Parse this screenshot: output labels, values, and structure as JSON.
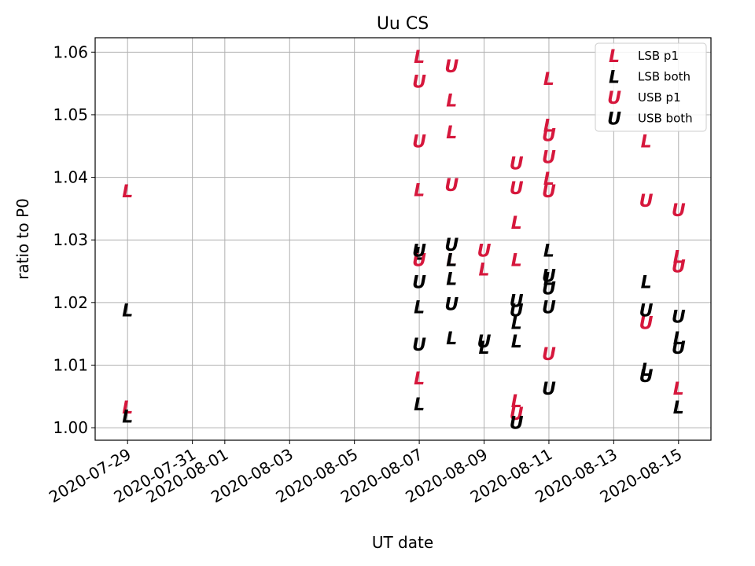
{
  "chart_data": {
    "type": "scatter",
    "title": "Uu CS",
    "xlabel": "UT date",
    "ylabel": "ratio to P0",
    "xlim": [
      "2020-07-28",
      "2020-08-16"
    ],
    "ylim": [
      0.998,
      1.0623
    ],
    "x_ticks": [
      "2020-07-29",
      "2020-07-31",
      "2020-08-01",
      "2020-08-03",
      "2020-08-05",
      "2020-08-07",
      "2020-08-09",
      "2020-08-11",
      "2020-08-13",
      "2020-08-15"
    ],
    "x_tick_labels": [
      "2020-07-29",
      "2020-07-31",
      "2020-08-01",
      "2020-08-03",
      "2020-08-05",
      "2020-08-07",
      "2020-08-09",
      "2020-08-11",
      "2020-08-13",
      "2020-08-15"
    ],
    "y_ticks": [
      1.0,
      1.01,
      1.02,
      1.03,
      1.04,
      1.05,
      1.06
    ],
    "y_tick_labels": [
      "1.00",
      "1.01",
      "1.02",
      "1.03",
      "1.04",
      "1.05",
      "1.06"
    ],
    "grid": true,
    "legend_position": "top-right",
    "series": [
      {
        "name": "LSB p1",
        "marker": "L",
        "color": "#d6173c",
        "points": [
          {
            "x": "2020-07-29",
            "y": 1.0378
          },
          {
            "x": "2020-07-29",
            "y": 1.0033
          },
          {
            "x": "2020-08-07",
            "y": 1.0593
          },
          {
            "x": "2020-08-07",
            "y": 1.038
          },
          {
            "x": "2020-08-07",
            "y": 1.0079
          },
          {
            "x": "2020-08-08",
            "y": 1.0523
          },
          {
            "x": "2020-08-08",
            "y": 1.0472
          },
          {
            "x": "2020-08-08",
            "y": 1.0268
          },
          {
            "x": "2020-08-09",
            "y": 1.0253
          },
          {
            "x": "2020-08-10",
            "y": 1.0328
          },
          {
            "x": "2020-08-10",
            "y": 1.0268
          },
          {
            "x": "2020-08-10",
            "y": 1.0043
          },
          {
            "x": "2020-08-11",
            "y": 1.0558
          },
          {
            "x": "2020-08-11",
            "y": 1.0483
          },
          {
            "x": "2020-08-11",
            "y": 1.0398
          },
          {
            "x": "2020-08-14",
            "y": 1.0458
          },
          {
            "x": "2020-08-15",
            "y": 1.0273
          },
          {
            "x": "2020-08-15",
            "y": 1.0063
          }
        ]
      },
      {
        "name": "LSB both",
        "marker": "L",
        "color": "#000000",
        "points": [
          {
            "x": "2020-07-29",
            "y": 1.0188
          },
          {
            "x": "2020-07-29",
            "y": 1.0018
          },
          {
            "x": "2020-08-07",
            "y": 1.0278
          },
          {
            "x": "2020-08-07",
            "y": 1.0193
          },
          {
            "x": "2020-08-07",
            "y": 1.0038
          },
          {
            "x": "2020-08-08",
            "y": 1.0268
          },
          {
            "x": "2020-08-08",
            "y": 1.0238
          },
          {
            "x": "2020-08-08",
            "y": 1.0143
          },
          {
            "x": "2020-08-09",
            "y": 1.0128
          },
          {
            "x": "2020-08-10",
            "y": 1.0168
          },
          {
            "x": "2020-08-10",
            "y": 1.0138
          },
          {
            "x": "2020-08-11",
            "y": 1.0283
          },
          {
            "x": "2020-08-11",
            "y": 1.0238
          },
          {
            "x": "2020-08-14",
            "y": 1.0233
          },
          {
            "x": "2020-08-14",
            "y": 1.0093
          },
          {
            "x": "2020-08-15",
            "y": 1.0143
          },
          {
            "x": "2020-08-15",
            "y": 1.0033
          }
        ]
      },
      {
        "name": "USB p1",
        "marker": "U",
        "color": "#d6173c",
        "points": [
          {
            "x": "2020-08-07",
            "y": 1.0553
          },
          {
            "x": "2020-08-07",
            "y": 1.0458
          },
          {
            "x": "2020-08-07",
            "y": 1.0268
          },
          {
            "x": "2020-08-08",
            "y": 1.0578
          },
          {
            "x": "2020-08-08",
            "y": 1.0388
          },
          {
            "x": "2020-08-09",
            "y": 1.0283
          },
          {
            "x": "2020-08-10",
            "y": 1.0423
          },
          {
            "x": "2020-08-10",
            "y": 1.0383
          },
          {
            "x": "2020-08-10",
            "y": 1.0023
          },
          {
            "x": "2020-08-11",
            "y": 1.0468
          },
          {
            "x": "2020-08-11",
            "y": 1.0433
          },
          {
            "x": "2020-08-11",
            "y": 1.0378
          },
          {
            "x": "2020-08-11",
            "y": 1.0118
          },
          {
            "x": "2020-08-14",
            "y": 1.0363
          },
          {
            "x": "2020-08-14",
            "y": 1.0168
          },
          {
            "x": "2020-08-15",
            "y": 1.0348
          },
          {
            "x": "2020-08-15",
            "y": 1.0258
          }
        ]
      },
      {
        "name": "USB both",
        "marker": "U",
        "color": "#000000",
        "points": [
          {
            "x": "2020-08-07",
            "y": 1.0283
          },
          {
            "x": "2020-08-07",
            "y": 1.0233
          },
          {
            "x": "2020-08-07",
            "y": 1.0133
          },
          {
            "x": "2020-08-08",
            "y": 1.0293
          },
          {
            "x": "2020-08-08",
            "y": 1.0198
          },
          {
            "x": "2020-08-09",
            "y": 1.0138
          },
          {
            "x": "2020-08-10",
            "y": 1.0203
          },
          {
            "x": "2020-08-10",
            "y": 1.0188
          },
          {
            "x": "2020-08-10",
            "y": 1.0008
          },
          {
            "x": "2020-08-11",
            "y": 1.0243
          },
          {
            "x": "2020-08-11",
            "y": 1.0223
          },
          {
            "x": "2020-08-11",
            "y": 1.0193
          },
          {
            "x": "2020-08-11",
            "y": 1.0063
          },
          {
            "x": "2020-08-14",
            "y": 1.0188
          },
          {
            "x": "2020-08-14",
            "y": 1.0083
          },
          {
            "x": "2020-08-15",
            "y": 1.0178
          },
          {
            "x": "2020-08-15",
            "y": 1.0128
          }
        ]
      }
    ]
  }
}
